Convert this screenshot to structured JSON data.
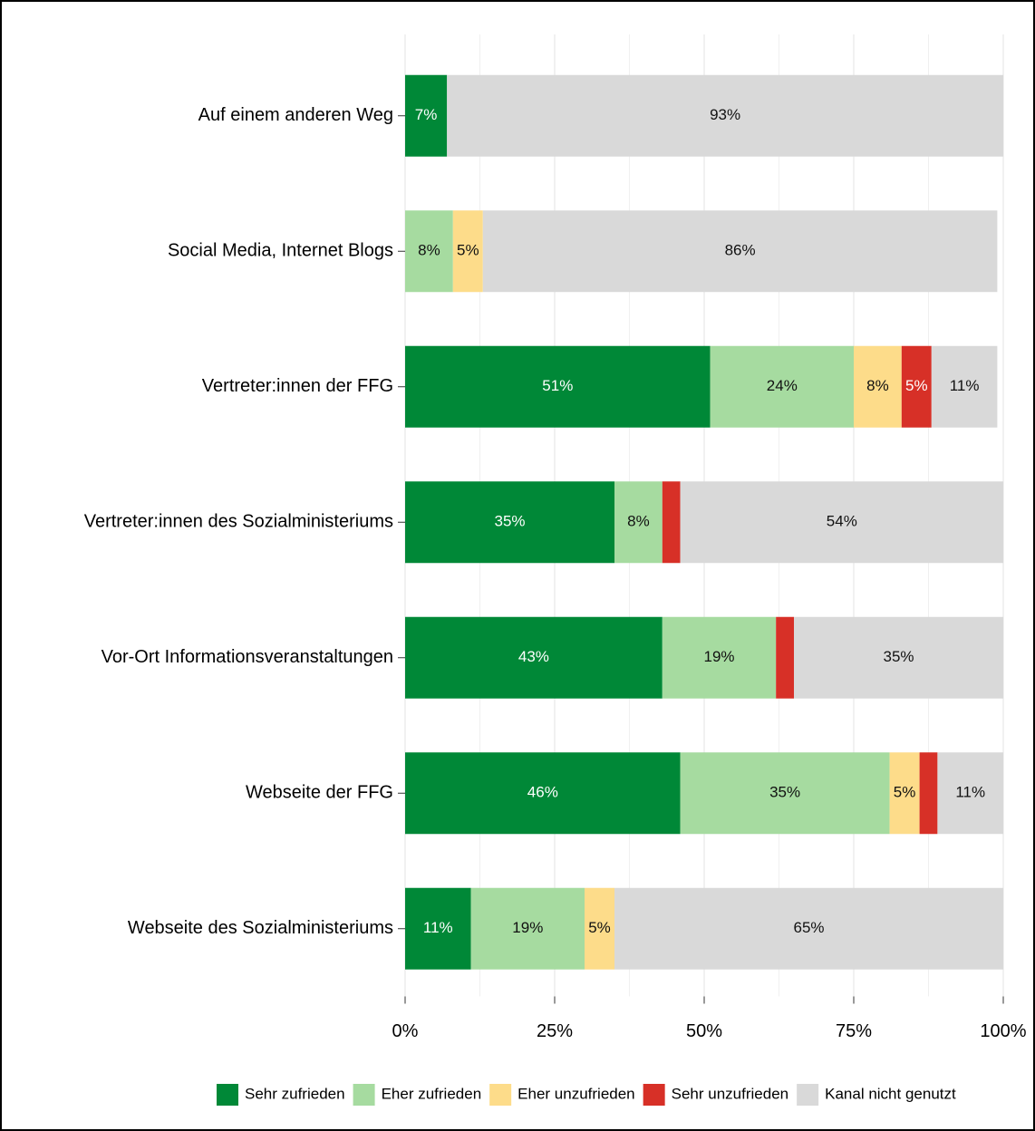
{
  "chart_data": {
    "type": "stacked_barh",
    "categories": [
      "Auf einem anderen Weg",
      "Social Media, Internet Blogs",
      "Vertreter:innen der FFG",
      "Vertreter:innen des Sozialministeriums",
      "Vor-Ort Informationsveranstaltungen",
      "Webseite der FFG",
      "Webseite des Sozialministeriums"
    ],
    "series": [
      {
        "name": "Sehr zufrieden",
        "color": "#008837",
        "values": [
          7,
          0,
          51,
          35,
          43,
          46,
          11
        ],
        "value_labels": [
          "7%",
          null,
          "51%",
          "35%",
          "43%",
          "46%",
          "11%"
        ]
      },
      {
        "name": "Eher zufrieden",
        "color": "#a6dba0",
        "values": [
          0,
          8,
          24,
          8,
          19,
          35,
          19
        ],
        "value_labels": [
          null,
          "8%",
          "24%",
          "8%",
          "19%",
          "35%",
          "19%"
        ]
      },
      {
        "name": "Eher unzufrieden",
        "color": "#fddc8a",
        "values": [
          0,
          5,
          8,
          0,
          0,
          5,
          5
        ],
        "value_labels": [
          null,
          "5%",
          "8%",
          null,
          null,
          "5%",
          "5%"
        ]
      },
      {
        "name": "Sehr unzufrieden",
        "color": "#d73027",
        "values": [
          0,
          0,
          5,
          3,
          3,
          3,
          0
        ],
        "value_labels": [
          null,
          null,
          "5%",
          null,
          null,
          null,
          null
        ]
      },
      {
        "name": "Kanal nicht genutzt",
        "color": "#d9d9d9",
        "values": [
          93,
          86,
          11,
          54,
          35,
          11,
          65
        ],
        "value_labels": [
          "93%",
          "86%",
          "11%",
          "54%",
          "35%",
          "11%",
          "65%"
        ]
      }
    ],
    "xlim": [
      0,
      100
    ],
    "xticks": [
      {
        "value": 0,
        "label": "0%"
      },
      {
        "value": 25,
        "label": "25%"
      },
      {
        "value": 50,
        "label": "50%"
      },
      {
        "value": 75,
        "label": "75%"
      },
      {
        "value": 100,
        "label": "100%"
      }
    ],
    "grid": true,
    "legend": "bottom"
  }
}
